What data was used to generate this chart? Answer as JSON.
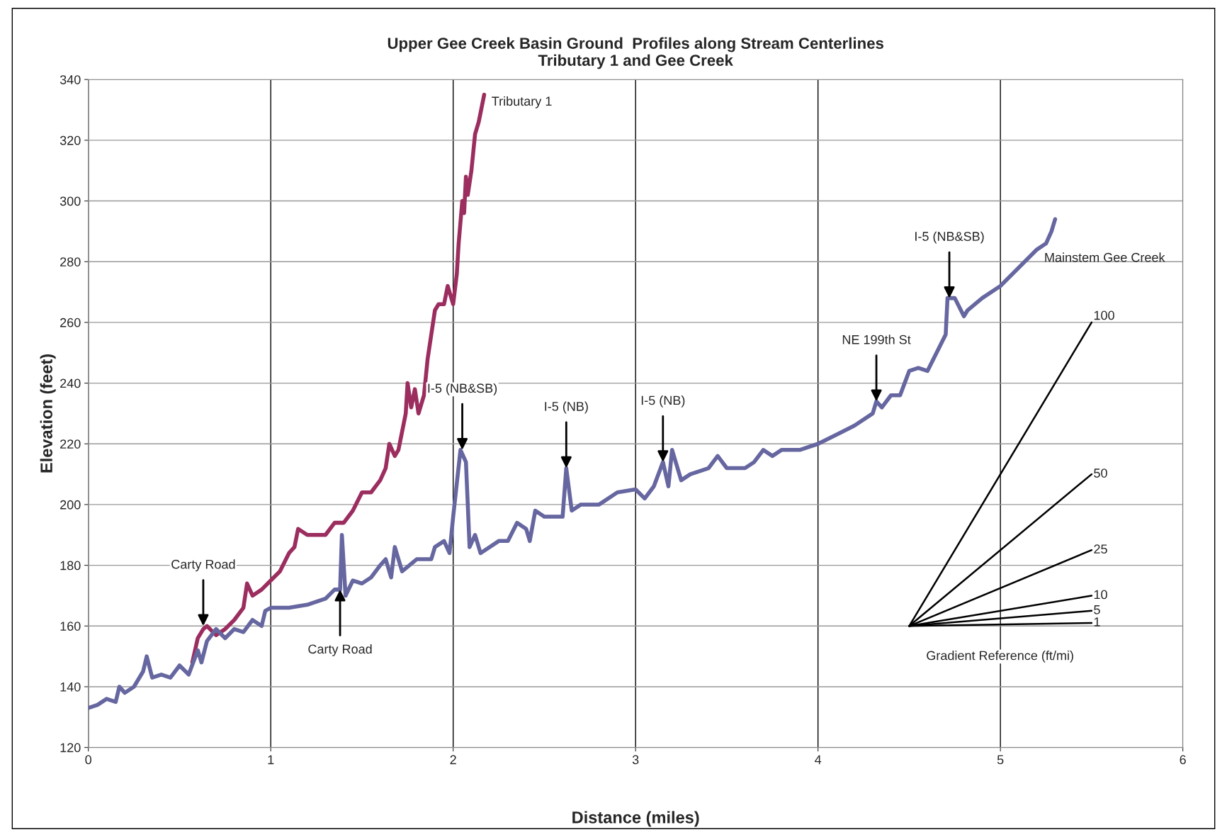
{
  "chart_data": {
    "type": "line",
    "title": "Upper Gee Creek Basin Ground  Profiles along Stream Centerlines\nTributary 1 and Gee Creek",
    "xlabel": "Distance (miles)",
    "ylabel": "Elevation (feet)",
    "xlim": [
      0,
      6
    ],
    "ylim": [
      120,
      340
    ],
    "xticks": [
      0,
      1,
      2,
      3,
      4,
      5,
      6
    ],
    "yticks": [
      120,
      140,
      160,
      180,
      200,
      220,
      240,
      260,
      280,
      300,
      320,
      340
    ],
    "grid": true,
    "legend": false,
    "marker": "none",
    "line_style": "solid",
    "series": [
      {
        "name": "Tributary 1",
        "color": "#9b2d5f",
        "x": [
          0.57,
          0.6,
          0.63,
          0.65,
          0.7,
          0.75,
          0.8,
          0.85,
          0.87,
          0.9,
          0.95,
          1.0,
          1.05,
          1.1,
          1.13,
          1.15,
          1.2,
          1.3,
          1.35,
          1.4,
          1.45,
          1.5,
          1.55,
          1.6,
          1.63,
          1.65,
          1.68,
          1.7,
          1.72,
          1.74,
          1.75,
          1.77,
          1.79,
          1.81,
          1.84,
          1.86,
          1.9,
          1.92,
          1.95,
          1.97,
          2.0,
          2.02,
          2.03,
          2.05,
          2.06,
          2.07,
          2.08,
          2.1,
          2.12,
          2.14,
          2.17
        ],
        "values": [
          148,
          156,
          159,
          160,
          157,
          159,
          162,
          166,
          174,
          170,
          172,
          175,
          178,
          184,
          186,
          192,
          190,
          190,
          194,
          194,
          198,
          204,
          204,
          208,
          212,
          220,
          216,
          218,
          224,
          230,
          240,
          232,
          238,
          230,
          236,
          248,
          264,
          266,
          266,
          272,
          266,
          276,
          286,
          300,
          296,
          308,
          302,
          310,
          322,
          326,
          335
        ]
      },
      {
        "name": "Mainstem Gee Creek",
        "color": "#6666a0",
        "x": [
          0,
          0.05,
          0.1,
          0.15,
          0.17,
          0.2,
          0.25,
          0.3,
          0.32,
          0.35,
          0.4,
          0.45,
          0.5,
          0.55,
          0.6,
          0.62,
          0.65,
          0.7,
          0.75,
          0.8,
          0.85,
          0.9,
          0.95,
          0.97,
          1.0,
          1.1,
          1.2,
          1.3,
          1.35,
          1.38,
          1.39,
          1.41,
          1.45,
          1.5,
          1.55,
          1.6,
          1.63,
          1.66,
          1.68,
          1.72,
          1.8,
          1.88,
          1.9,
          1.95,
          1.98,
          2.0,
          2.04,
          2.07,
          2.09,
          2.12,
          2.15,
          2.25,
          2.3,
          2.35,
          2.4,
          2.42,
          2.45,
          2.5,
          2.6,
          2.62,
          2.65,
          2.7,
          2.8,
          2.9,
          3.0,
          3.05,
          3.1,
          3.15,
          3.18,
          3.2,
          3.25,
          3.3,
          3.4,
          3.45,
          3.5,
          3.6,
          3.65,
          3.7,
          3.75,
          3.8,
          3.9,
          4.0,
          4.1,
          4.2,
          4.3,
          4.32,
          4.35,
          4.4,
          4.45,
          4.5,
          4.55,
          4.6,
          4.65,
          4.7,
          4.71,
          4.75,
          4.8,
          4.82,
          4.9,
          5.0,
          5.1,
          5.2,
          5.25,
          5.28,
          5.3
        ],
        "values": [
          133,
          134,
          136,
          135,
          140,
          138,
          140,
          145,
          150,
          143,
          144,
          143,
          147,
          144,
          152,
          148,
          155,
          159,
          156,
          159,
          158,
          162,
          160,
          165,
          166,
          166,
          167,
          169,
          172,
          172,
          190,
          170,
          175,
          174,
          176,
          180,
          182,
          176,
          186,
          178,
          182,
          182,
          186,
          188,
          184,
          196,
          218,
          214,
          186,
          190,
          184,
          188,
          188,
          194,
          192,
          188,
          198,
          196,
          196,
          212,
          198,
          200,
          200,
          204,
          205,
          202,
          206,
          214,
          206,
          218,
          208,
          210,
          212,
          216,
          212,
          212,
          214,
          218,
          216,
          218,
          218,
          220,
          223,
          226,
          230,
          234,
          232,
          236,
          236,
          244,
          245,
          244,
          250,
          256,
          268,
          268,
          262,
          264,
          268,
          272,
          278,
          284,
          286,
          290,
          294
        ]
      },
      {
        "color": "#000000",
        "x": [
          4.5,
          5.5
        ],
        "values": [
          160,
          260
        ]
      },
      {
        "color": "#000000",
        "x": [
          4.5,
          5.5
        ],
        "values": [
          160,
          210
        ]
      },
      {
        "color": "#000000",
        "x": [
          4.5,
          5.5
        ],
        "values": [
          160,
          185
        ]
      },
      {
        "color": "#000000",
        "x": [
          4.5,
          5.5
        ],
        "values": [
          160,
          170
        ]
      },
      {
        "color": "#000000",
        "x": [
          4.5,
          5.5
        ],
        "values": [
          160,
          165
        ]
      },
      {
        "color": "#000000",
        "x": [
          4.5,
          5.5
        ],
        "values": [
          160,
          161
        ]
      }
    ],
    "annotations": [
      {
        "text": "Carty Road",
        "x": 0.63,
        "y": 160
      },
      {
        "text": "Carty Road",
        "x": 1.38,
        "y": 172
      },
      {
        "text": "I-5 (NB&SB)",
        "x": 2.05,
        "y": 218
      },
      {
        "text": "I-5 (NB)",
        "x": 2.62,
        "y": 212
      },
      {
        "text": "I-5 (NB)",
        "x": 3.15,
        "y": 214
      },
      {
        "text": "NE 199th St",
        "x": 4.32,
        "y": 234
      },
      {
        "text": "I-5 (NB&SB)",
        "x": 4.72,
        "y": 268
      },
      {
        "text": "100",
        "x": 5.5,
        "y": 260
      },
      {
        "text": "50",
        "x": 5.5,
        "y": 210
      },
      {
        "text": "25",
        "x": 5.5,
        "y": 185
      },
      {
        "text": "10",
        "x": 5.5,
        "y": 170
      },
      {
        "text": "5",
        "x": 5.5,
        "y": 165
      },
      {
        "text": "1",
        "x": 5.5,
        "y": 161
      },
      "Gradient Reference (ft/mi)"
    ]
  }
}
